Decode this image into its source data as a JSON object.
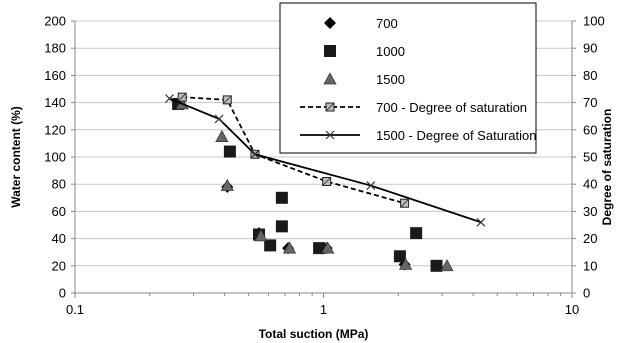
{
  "chart_data": {
    "type": "scatter",
    "xlabel": "Total suction  (MPa)",
    "ylabel": "Water content (%)",
    "y2label": "Degree of saturation",
    "x_scale": "log",
    "xlim": [
      0.1,
      10
    ],
    "xticks": [
      "0.1",
      "1",
      "10"
    ],
    "ylim": [
      0,
      200
    ],
    "yticks": [
      "0",
      "20",
      "40",
      "60",
      "80",
      "100",
      "120",
      "140",
      "160",
      "180",
      "200"
    ],
    "y2lim": [
      0,
      100
    ],
    "y2ticks": [
      "0",
      "10",
      "20",
      "30",
      "40",
      "50",
      "60",
      "70",
      "80",
      "90",
      "100"
    ],
    "grid": "horizontal",
    "legend_position": "top-right",
    "series": [
      {
        "name": "700",
        "kind": "scatter",
        "marker": "diamond",
        "axis": "left",
        "color": "#000000",
        "points": [
          [
            0.41,
            78
          ],
          [
            0.55,
            44
          ],
          [
            0.72,
            33
          ],
          [
            1.03,
            33
          ],
          [
            2.12,
            21
          ]
        ]
      },
      {
        "name": "1000",
        "kind": "scatter",
        "marker": "square",
        "axis": "left",
        "color": "#1a1a1a",
        "points": [
          [
            0.26,
            139
          ],
          [
            0.42,
            104
          ],
          [
            0.55,
            43
          ],
          [
            0.61,
            35
          ],
          [
            0.68,
            70
          ],
          [
            0.68,
            49
          ],
          [
            0.96,
            33
          ],
          [
            2.03,
            27
          ],
          [
            2.36,
            44
          ],
          [
            2.85,
            20
          ]
        ]
      },
      {
        "name": "1500",
        "kind": "scatter",
        "marker": "triangle",
        "axis": "left",
        "color": "#666666",
        "points": [
          [
            0.27,
            139
          ],
          [
            0.39,
            115
          ],
          [
            0.41,
            79
          ],
          [
            0.56,
            42
          ],
          [
            0.73,
            33
          ],
          [
            1.04,
            33
          ],
          [
            2.14,
            21
          ],
          [
            3.14,
            20
          ]
        ]
      },
      {
        "name": "700  - Degree of saturation",
        "kind": "line",
        "style": "dashed",
        "marker": "square-hatched",
        "axis": "right",
        "color": "#000000",
        "points": [
          [
            0.27,
            72
          ],
          [
            0.41,
            71
          ],
          [
            0.53,
            51
          ],
          [
            1.03,
            41
          ],
          [
            2.12,
            33
          ]
        ]
      },
      {
        "name": "1500 - Degree of Saturation",
        "kind": "line",
        "style": "solid",
        "marker": "x",
        "axis": "right",
        "color": "#000000",
        "points": [
          [
            0.24,
            71.5
          ],
          [
            0.38,
            64
          ],
          [
            0.53,
            51
          ],
          [
            1.55,
            39.5
          ],
          [
            4.3,
            26
          ]
        ]
      }
    ]
  }
}
